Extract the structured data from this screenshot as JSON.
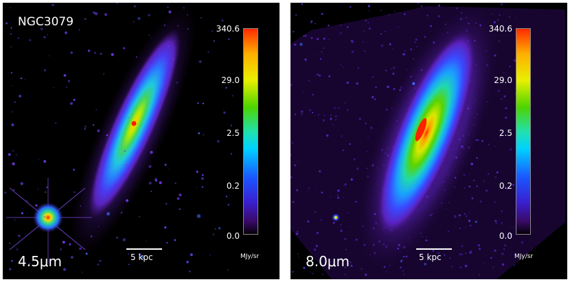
{
  "panels": [
    {
      "object_name": "NGC3079",
      "band_label": "4.5μm",
      "scalebar_label": "5 kpc",
      "colorbar": {
        "ticks": [
          "340.6",
          "29.0",
          "2.5",
          "0.2",
          "0.0"
        ],
        "unit": "MJy/sr"
      }
    },
    {
      "object_name": "",
      "band_label": "8.0μm",
      "scalebar_label": "5 kpc",
      "colorbar": {
        "ticks": [
          "340.6",
          "29.0",
          "2.5",
          "0.2",
          "0.0"
        ],
        "unit": "MJy/sr"
      }
    }
  ],
  "colormap": [
    "#ff2a00",
    "#ffae00",
    "#e8f000",
    "#4cd400",
    "#20e0b0",
    "#00d2ff",
    "#1a57ff",
    "#3a1fcf",
    "#3a0a6a",
    "#000000"
  ]
}
